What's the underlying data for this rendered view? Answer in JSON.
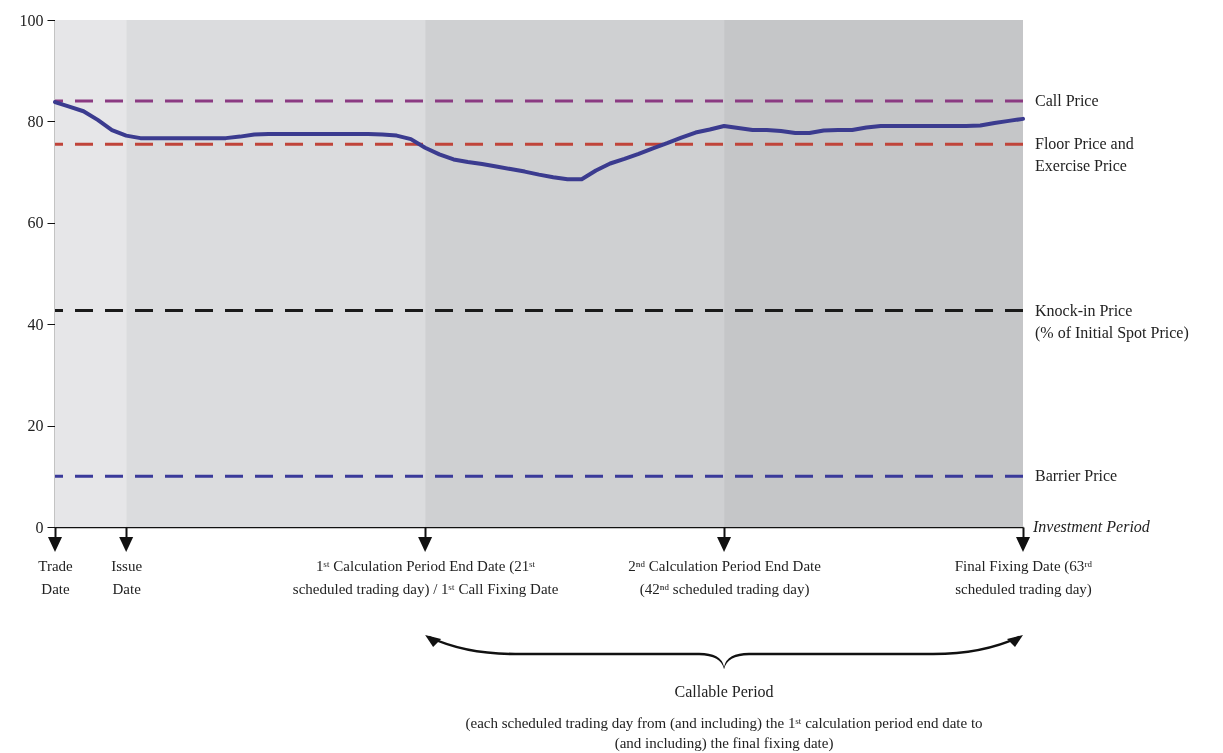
{
  "chart_data": {
    "type": "line",
    "categories": [
      "Trade\nDate",
      null,
      null,
      null,
      null,
      "Issue\nDate",
      null,
      null,
      null,
      null,
      null,
      null,
      null,
      null,
      null,
      null,
      null,
      null,
      null,
      null,
      null,
      null,
      null,
      null,
      null,
      null,
      "1ˢᵗ Calculation Period End Date (21ˢᵗ\nscheduled trading day) / 1ˢᵗ Call Fixing Date",
      null,
      null,
      null,
      null,
      null,
      null,
      null,
      null,
      null,
      null,
      null,
      null,
      null,
      null,
      null,
      null,
      null,
      null,
      null,
      null,
      "2ⁿᵈ Calculation Period End Date\n(42ⁿᵈ scheduled trading day)",
      null,
      null,
      null,
      null,
      null,
      null,
      null,
      null,
      null,
      null,
      null,
      null,
      null,
      null,
      null,
      null,
      null,
      null,
      null,
      null,
      "Final Fixing Date (63ʳᵈ\nscheduled trading day)"
    ],
    "ylim": [
      0,
      100
    ],
    "yticks": [
      0,
      20,
      40,
      60,
      80,
      100
    ],
    "series": [
      {
        "color": "#3b3b8f",
        "values": [
          83.8,
          82.9,
          82.0,
          80.3,
          78.3,
          77.2,
          76.7,
          76.7,
          76.7,
          76.7,
          76.7,
          76.7,
          76.7,
          77.0,
          77.4,
          77.5,
          77.5,
          77.5,
          77.5,
          77.5,
          77.5,
          77.5,
          77.5,
          77.4,
          77.2,
          76.5,
          74.8,
          73.5,
          72.5,
          72.0,
          71.6,
          71.1,
          70.6,
          70.1,
          69.5,
          69.0,
          68.6,
          68.6,
          70.3,
          71.7,
          72.6,
          73.6,
          74.7,
          75.7,
          76.8,
          77.8,
          78.4,
          79.1,
          78.7,
          78.3,
          78.3,
          78.1,
          77.7,
          77.7,
          78.2,
          78.3,
          78.3,
          78.8,
          79.1,
          79.1,
          79.1,
          79.1,
          79.1,
          79.1,
          79.1,
          79.2,
          79.7,
          80.1,
          80.5
        ]
      }
    ],
    "bands": [
      {
        "axis": "x",
        "from": "Trade\nDate",
        "to": "Issue\nDate",
        "color": "#e6e6e8"
      },
      {
        "axis": "x",
        "from": "Issue\nDate",
        "to": "1ˢᵗ Calculation Period End Date (21ˢᵗ\nscheduled trading day) / 1ˢᵗ Call Fixing Date",
        "color": "#dbdcde"
      },
      {
        "axis": "x",
        "from": "1ˢᵗ Calculation Period End Date (21ˢᵗ\nscheduled trading day) / 1ˢᵗ Call Fixing Date",
        "to": "2ⁿᵈ Calculation Period End Date\n(42ⁿᵈ scheduled trading day)",
        "color": "#cfd0d2"
      },
      {
        "axis": "x",
        "from": "2ⁿᵈ Calculation Period End Date\n(42ⁿᵈ scheduled trading day)",
        "to": "Final Fixing Date (63ʳᵈ\nscheduled trading day)",
        "color": "#c5c6c8"
      }
    ],
    "ref_lines": [
      {
        "axis": "y",
        "value": 84,
        "label": "Call Price",
        "color": "#8b3a82",
        "line_style": "dashed"
      },
      {
        "axis": "y",
        "value": 75.5,
        "label": "Floor Price and\nExercise Price",
        "color": "#c0443a",
        "line_style": "dashed"
      },
      {
        "axis": "y",
        "value": 42.7,
        "label": "Knock-in Price\n(% of Initial Spot Price)",
        "color": "#1a1a1a",
        "line_style": "dashed"
      },
      {
        "axis": "y",
        "value": 10,
        "label": "Barrier Price",
        "color": "#3a3a9a",
        "line_style": "dashed"
      }
    ],
    "annotations": [
      "Investment Period",
      "Callable Period",
      "(each scheduled trading day from (and including) the 1ˢᵗ calculation period end date to\n(and including) the final fixing date)"
    ]
  }
}
